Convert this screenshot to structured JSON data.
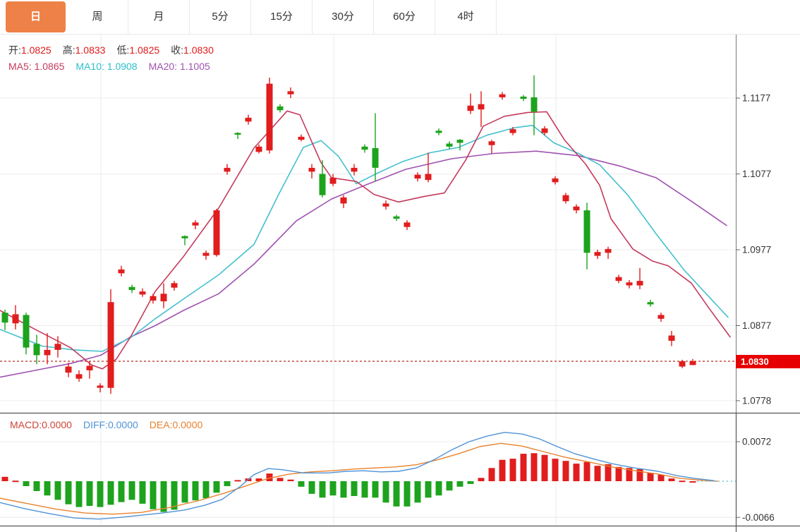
{
  "tabbar": {
    "active_color": "#ee8147",
    "tabs": [
      {
        "label": "日",
        "active": true
      },
      {
        "label": "周",
        "active": false
      },
      {
        "label": "月",
        "active": false
      },
      {
        "label": "5分",
        "active": false
      },
      {
        "label": "15分",
        "active": false
      },
      {
        "label": "30分",
        "active": false
      },
      {
        "label": "60分",
        "active": false
      },
      {
        "label": "4时",
        "active": false
      }
    ]
  },
  "info": {
    "ohlc": [
      {
        "label": "开:",
        "value": "1.0825"
      },
      {
        "label": "高:",
        "value": "1.0833"
      },
      {
        "label": "低:",
        "value": "1.0825"
      },
      {
        "label": "收:",
        "value": "1.0830"
      }
    ],
    "ohlc_value_color": "#e01919",
    "ma": [
      {
        "label": "MA5:",
        "value": "1.0865",
        "color": "#c43b5c"
      },
      {
        "label": "MA10:",
        "value": "1.0908",
        "color": "#2bbfcb"
      },
      {
        "label": "MA20:",
        "value": "1.1005",
        "color": "#a052b0"
      }
    ]
  },
  "macd_info": [
    {
      "label": "MACD:",
      "value": "0.0000",
      "color": "#d04438"
    },
    {
      "label": "DIFF:",
      "value": "0.0000",
      "color": "#4f93d6"
    },
    {
      "label": "DEA:",
      "value": "0.0000",
      "color": "#e8822e"
    }
  ],
  "colors": {
    "up": "#e11d1d",
    "down": "#1da31d",
    "ma5": "#c43b5c",
    "ma10": "#44c0cf",
    "ma20": "#a052b0",
    "diff": "#4f93d6",
    "dea": "#e8822e",
    "grid_h": "#ececec",
    "grid_v": "#e6ecee",
    "axis": "#555555",
    "tick_text": "#333333",
    "dotted_price_line": "#c35043",
    "macd_tail": "#63c8dc",
    "badge_bg": "#e60000"
  },
  "chart_data": {
    "type": "candlestick_with_macd",
    "main": {
      "last_price_label": "1.0830",
      "last_price": 1.083,
      "y_ticks": [
        "1.1177",
        "1.1077",
        "1.0977",
        "1.0877",
        "1.0778"
      ],
      "y_tick_values": [
        1.1177,
        1.1077,
        1.0977,
        1.0877,
        1.0778
      ],
      "ylim": [
        1.076,
        1.1215
      ],
      "x_gridlines": [
        143,
        473,
        788
      ],
      "candles_note": "arrays are [open, high, low, close]; x = 7 + 15*i",
      "candles": [
        [
          1.0894,
          1.0898,
          1.0871,
          1.0881
        ],
        [
          1.088,
          1.0904,
          1.0872,
          1.0892
        ],
        [
          1.0891,
          1.0894,
          1.0839,
          1.0848
        ],
        [
          1.0853,
          1.0865,
          1.0826,
          1.0838
        ],
        [
          1.0838,
          1.0867,
          1.0826,
          1.0845
        ],
        [
          1.0845,
          1.0863,
          1.0835,
          1.0853
        ],
        [
          1.0815,
          1.0828,
          1.0809,
          1.0823
        ],
        [
          1.0807,
          1.0818,
          1.0803,
          1.0813
        ],
        [
          1.0818,
          1.083,
          1.0807,
          1.0824
        ],
        [
          1.0795,
          1.0801,
          1.0789,
          1.0798
        ],
        [
          1.0795,
          1.0925,
          1.0787,
          1.0908
        ],
        [
          1.0946,
          1.0956,
          1.0942,
          1.0951
        ],
        [
          1.0928,
          1.0931,
          1.092,
          1.0924
        ],
        [
          1.0918,
          1.0926,
          1.0915,
          1.0922
        ],
        [
          1.091,
          1.0919,
          1.0906,
          1.0916
        ],
        [
          1.0909,
          1.0933,
          1.09,
          1.0919
        ],
        [
          1.0927,
          1.0936,
          1.0923,
          1.0933
        ],
        [
          1.0995,
          1.0996,
          1.0983,
          1.0992
        ],
        [
          1.1009,
          1.1016,
          1.1004,
          1.1013
        ],
        [
          1.0969,
          1.0976,
          1.0964,
          1.0973
        ],
        [
          1.097,
          1.1031,
          1.0968,
          1.1029
        ],
        [
          1.108,
          1.109,
          1.1076,
          1.1085
        ],
        [
          1.1131,
          1.1132,
          1.1123,
          1.1129
        ],
        [
          1.1146,
          1.1155,
          1.1142,
          1.1151
        ],
        [
          1.1106,
          1.1116,
          1.1104,
          1.1113
        ],
        [
          1.1108,
          1.1204,
          1.1104,
          1.1196
        ],
        [
          1.1166,
          1.1169,
          1.1158,
          1.1161
        ],
        [
          1.1182,
          1.1191,
          1.1177,
          1.1186
        ],
        [
          1.1122,
          1.1129,
          1.112,
          1.1126
        ],
        [
          1.108,
          1.109,
          1.1071,
          1.1085
        ],
        [
          1.1077,
          1.1095,
          1.1046,
          1.1049
        ],
        [
          1.1064,
          1.1077,
          1.1061,
          1.1072
        ],
        [
          1.1038,
          1.1049,
          1.1032,
          1.1046
        ],
        [
          1.108,
          1.109,
          1.1075,
          1.1085
        ],
        [
          1.1113,
          1.1116,
          1.1105,
          1.1109
        ],
        [
          1.1111,
          1.1157,
          1.1067,
          1.1085
        ],
        [
          1.1034,
          1.1042,
          1.103,
          1.1038
        ],
        [
          1.1021,
          1.1023,
          1.1015,
          1.1018
        ],
        [
          1.1007,
          1.1016,
          1.1003,
          1.1013
        ],
        [
          1.1071,
          1.1079,
          1.1067,
          1.1076
        ],
        [
          1.1069,
          1.1105,
          1.1066,
          1.1077
        ],
        [
          1.1134,
          1.1137,
          1.1128,
          1.1131
        ],
        [
          1.1117,
          1.112,
          1.111,
          1.1113
        ],
        [
          1.1122,
          1.1123,
          1.1108,
          1.1118
        ],
        [
          1.116,
          1.1183,
          1.1156,
          1.1167
        ],
        [
          1.1162,
          1.1186,
          1.1139,
          1.1169
        ],
        [
          1.1115,
          1.1122,
          1.1104,
          1.112
        ],
        [
          1.1178,
          1.1185,
          1.1175,
          1.1182
        ],
        [
          1.1131,
          1.1139,
          1.1128,
          1.1136
        ],
        [
          1.1179,
          1.1181,
          1.1173,
          1.1176
        ],
        [
          1.1178,
          1.1207,
          1.1128,
          1.1159
        ],
        [
          1.1131,
          1.114,
          1.1128,
          1.1137
        ],
        [
          1.1066,
          1.1074,
          1.1063,
          1.1071
        ],
        [
          1.1041,
          1.1052,
          1.1038,
          1.1049
        ],
        [
          1.1029,
          1.1037,
          1.1025,
          1.1034
        ],
        [
          1.1029,
          1.1039,
          1.0951,
          1.0973
        ],
        [
          1.0969,
          1.0977,
          1.0965,
          1.0974
        ],
        [
          1.0973,
          1.0981,
          1.0965,
          1.0978
        ],
        [
          1.0936,
          1.0944,
          1.0933,
          1.0941
        ],
        [
          1.093,
          1.0937,
          1.0926,
          1.0934
        ],
        [
          1.093,
          1.0953,
          1.0925,
          1.0936
        ],
        [
          1.0908,
          1.0911,
          1.0902,
          1.0905
        ],
        [
          1.0886,
          1.0894,
          1.0882,
          1.0891
        ],
        [
          1.0857,
          1.087,
          1.085,
          1.0864
        ],
        [
          1.0823,
          1.0832,
          1.0821,
          1.083
        ],
        [
          1.0825,
          1.0833,
          1.0825,
          1.083
        ]
      ],
      "ma5": [
        [
          0,
          1.0897
        ],
        [
          50,
          1.0872
        ],
        [
          100,
          1.0848
        ],
        [
          130,
          1.0825
        ],
        [
          145,
          1.082
        ],
        [
          165,
          1.0833
        ],
        [
          185,
          1.0862
        ],
        [
          220,
          1.0922
        ],
        [
          260,
          1.0968
        ],
        [
          310,
          1.1032
        ],
        [
          360,
          1.1111
        ],
        [
          407,
          1.116
        ],
        [
          425,
          1.1155
        ],
        [
          455,
          1.1092
        ],
        [
          470,
          1.1072
        ],
        [
          505,
          1.1067
        ],
        [
          530,
          1.105
        ],
        [
          565,
          1.104
        ],
        [
          600,
          1.1047
        ],
        [
          630,
          1.1052
        ],
        [
          660,
          1.1095
        ],
        [
          685,
          1.114
        ],
        [
          715,
          1.1153
        ],
        [
          748,
          1.1158
        ],
        [
          775,
          1.1159
        ],
        [
          800,
          1.1122
        ],
        [
          830,
          1.109
        ],
        [
          850,
          1.1062
        ],
        [
          866,
          1.1018
        ],
        [
          897,
          1.0978
        ],
        [
          925,
          1.0962
        ],
        [
          947,
          1.0956
        ],
        [
          980,
          1.0933
        ],
        [
          1005,
          1.09
        ],
        [
          1035,
          1.0862
        ]
      ],
      "ma10": [
        [
          0,
          1.0872
        ],
        [
          60,
          1.085
        ],
        [
          105,
          1.0845
        ],
        [
          145,
          1.0843
        ],
        [
          185,
          1.0861
        ],
        [
          220,
          1.0886
        ],
        [
          260,
          1.0912
        ],
        [
          310,
          1.0944
        ],
        [
          360,
          1.0984
        ],
        [
          395,
          1.105
        ],
        [
          430,
          1.1112
        ],
        [
          455,
          1.1121
        ],
        [
          480,
          1.11
        ],
        [
          505,
          1.1064
        ],
        [
          535,
          1.1078
        ],
        [
          570,
          1.1093
        ],
        [
          610,
          1.1105
        ],
        [
          650,
          1.1112
        ],
        [
          690,
          1.1128
        ],
        [
          730,
          1.1138
        ],
        [
          755,
          1.1141
        ],
        [
          785,
          1.1118
        ],
        [
          820,
          1.1104
        ],
        [
          850,
          1.1089
        ],
        [
          890,
          1.1049
        ],
        [
          930,
          1.0998
        ],
        [
          970,
          1.095
        ],
        [
          1000,
          1.092
        ],
        [
          1032,
          1.0888
        ]
      ],
      "ma20": [
        [
          0,
          1.0809
        ],
        [
          50,
          1.0818
        ],
        [
          100,
          1.0827
        ],
        [
          143,
          1.0838
        ],
        [
          185,
          1.0862
        ],
        [
          220,
          1.0877
        ],
        [
          260,
          1.0897
        ],
        [
          310,
          1.0919
        ],
        [
          360,
          1.0958
        ],
        [
          420,
          1.1015
        ],
        [
          470,
          1.1044
        ],
        [
          520,
          1.1063
        ],
        [
          575,
          1.1083
        ],
        [
          640,
          1.1097
        ],
        [
          700,
          1.1104
        ],
        [
          760,
          1.1107
        ],
        [
          820,
          1.1101
        ],
        [
          880,
          1.1087
        ],
        [
          930,
          1.1072
        ],
        [
          980,
          1.1041
        ],
        [
          1030,
          1.1009
        ]
      ]
    },
    "macd": {
      "y_ticks": [
        "0.0072",
        "-0.0066"
      ],
      "y_tick_values": [
        0.0072,
        -0.0066
      ],
      "histogram": [
        0.0008,
        0.0001,
        -0.0009,
        -0.0018,
        -0.0026,
        -0.0034,
        -0.0042,
        -0.0047,
        -0.0045,
        -0.0047,
        -0.0043,
        -0.0038,
        -0.0034,
        -0.0041,
        -0.0051,
        -0.0056,
        -0.0052,
        -0.0039,
        -0.0035,
        -0.0031,
        -0.0021,
        -0.0009,
        0.0002,
        0.0005,
        0.0005,
        0.0014,
        0.0006,
        0.0003,
        -0.001,
        -0.0023,
        -0.003,
        -0.0026,
        -0.003,
        -0.0027,
        -0.003,
        -0.003,
        -0.0039,
        -0.0046,
        -0.0046,
        -0.0039,
        -0.003,
        -0.0026,
        -0.0017,
        -0.001,
        -0.0005,
        0.0006,
        0.0024,
        0.0039,
        0.0041,
        0.005,
        0.0051,
        0.0048,
        0.0041,
        0.0037,
        0.0032,
        0.0035,
        0.0028,
        0.0031,
        0.0026,
        0.0024,
        0.0022,
        0.0015,
        0.0012,
        0.0005,
        0.0001,
        0.0
      ],
      "diff": [
        [
          0,
          -0.0039
        ],
        [
          35,
          -0.005
        ],
        [
          70,
          -0.0059
        ],
        [
          105,
          -0.0067
        ],
        [
          140,
          -0.0069
        ],
        [
          170,
          -0.0066
        ],
        [
          200,
          -0.0062
        ],
        [
          230,
          -0.0058
        ],
        [
          260,
          -0.0053
        ],
        [
          290,
          -0.0044
        ],
        [
          315,
          -0.0033
        ],
        [
          340,
          -0.001
        ],
        [
          360,
          0.0012
        ],
        [
          380,
          0.0023
        ],
        [
          400,
          0.0021
        ],
        [
          430,
          0.0015
        ],
        [
          465,
          0.0015
        ],
        [
          490,
          0.0018
        ],
        [
          515,
          0.0019
        ],
        [
          540,
          0.0017
        ],
        [
          565,
          0.0018
        ],
        [
          590,
          0.0024
        ],
        [
          615,
          0.0039
        ],
        [
          640,
          0.0057
        ],
        [
          665,
          0.0072
        ],
        [
          690,
          0.0082
        ],
        [
          715,
          0.0089
        ],
        [
          740,
          0.0086
        ],
        [
          765,
          0.0077
        ],
        [
          790,
          0.0063
        ],
        [
          815,
          0.005
        ],
        [
          840,
          0.0041
        ],
        [
          867,
          0.0032
        ],
        [
          900,
          0.0024
        ],
        [
          933,
          0.0018
        ],
        [
          960,
          0.001
        ],
        [
          985,
          0.0005
        ],
        [
          1012,
          0.0001
        ]
      ],
      "dea": [
        [
          0,
          -0.0031
        ],
        [
          40,
          -0.0041
        ],
        [
          80,
          -0.0051
        ],
        [
          120,
          -0.0058
        ],
        [
          160,
          -0.006
        ],
        [
          200,
          -0.0057
        ],
        [
          240,
          -0.0048
        ],
        [
          280,
          -0.0036
        ],
        [
          320,
          -0.0021
        ],
        [
          350,
          -0.0008
        ],
        [
          380,
          0.0005
        ],
        [
          410,
          0.0013
        ],
        [
          440,
          0.0017
        ],
        [
          470,
          0.0019
        ],
        [
          500,
          0.0022
        ],
        [
          530,
          0.0024
        ],
        [
          560,
          0.0026
        ],
        [
          590,
          0.003
        ],
        [
          620,
          0.0039
        ],
        [
          650,
          0.005
        ],
        [
          680,
          0.0063
        ],
        [
          710,
          0.0069
        ],
        [
          740,
          0.0064
        ],
        [
          770,
          0.0054
        ],
        [
          800,
          0.0044
        ],
        [
          835,
          0.0035
        ],
        [
          867,
          0.0026
        ],
        [
          900,
          0.0019
        ],
        [
          933,
          0.0013
        ],
        [
          965,
          0.0005
        ],
        [
          1000,
          0.0001
        ],
        [
          1017,
          0.0
        ]
      ],
      "zero_tail_dotted": true
    }
  }
}
